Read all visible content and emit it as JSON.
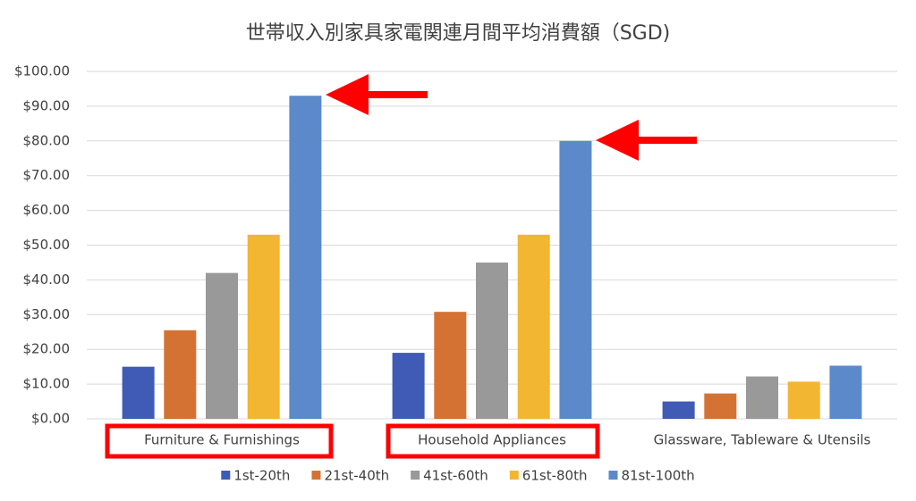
{
  "chart_data": {
    "type": "bar",
    "title": "世帯収入別家具家電関連月間平均消費額（SGD)",
    "categories": [
      "Furniture & Furnishings",
      "Household Appliances",
      "Glassware, Tableware & Utensils"
    ],
    "series": [
      {
        "name": "1st-20th",
        "color": "#3f5bb5",
        "values": [
          15,
          19,
          5
        ]
      },
      {
        "name": "21st-40th",
        "color": "#d47234",
        "values": [
          25.5,
          30.8,
          7.3
        ]
      },
      {
        "name": "41st-60th",
        "color": "#999999",
        "values": [
          42,
          45,
          12.2
        ]
      },
      {
        "name": "61st-80th",
        "color": "#f2b632",
        "values": [
          53,
          53,
          10.7
        ]
      },
      {
        "name": "81st-100th",
        "color": "#5b89c9",
        "values": [
          93,
          80,
          15.3
        ]
      }
    ],
    "ylim": [
      0,
      100
    ],
    "yticks": [
      {
        "value": 0,
        "label": "$0.00"
      },
      {
        "value": 10,
        "label": "$10.00"
      },
      {
        "value": 20,
        "label": "$20.00"
      },
      {
        "value": 30,
        "label": "$30.00"
      },
      {
        "value": 40,
        "label": "$40.00"
      },
      {
        "value": 50,
        "label": "$50.00"
      },
      {
        "value": 60,
        "label": "$60.00"
      },
      {
        "value": 70,
        "label": "$70.00"
      },
      {
        "value": 80,
        "label": "$80.00"
      },
      {
        "value": 90,
        "label": "$90.00"
      },
      {
        "value": 100,
        "label": "$100.00"
      }
    ],
    "grid": true
  }
}
